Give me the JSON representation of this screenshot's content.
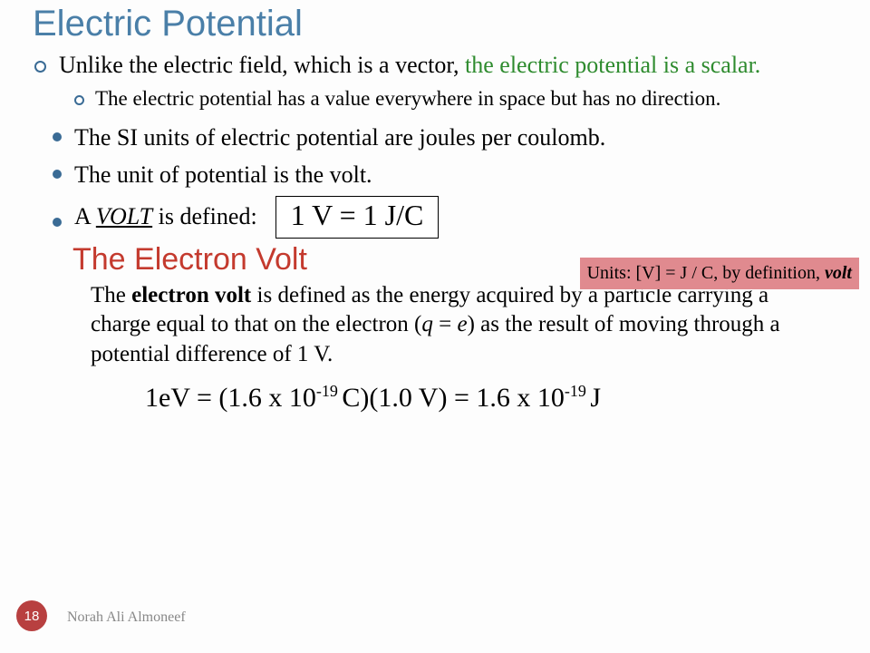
{
  "title": "Electric Potential",
  "bullet1": {
    "pre": "Unlike the electric field, which is a vector, ",
    "green": "the electric potential is a scalar.",
    "sub": "The electric potential has a value everywhere in space but has no direction."
  },
  "bullet2": "The SI units of electric potential are joules per coulomb.",
  "bullet3": "The unit of potential is the volt.",
  "bullet4_pre": "A   ",
  "bullet4_u": "VOLT",
  "bullet4_post": " is defined:",
  "eq1": "1 V = 1 J/C",
  "callout_pre": "Units: [V] = J / C,  by definition, ",
  "callout_volt": "volt",
  "heading2": "The Electron Volt",
  "para_pre": "The ",
  "para_bold": "electron volt",
  "para_mid": " is defined as the energy acquired by a particle carrying a charge equal to that on the electron (",
  "para_q": "q",
  "para_eq": " = ",
  "para_e": "e",
  "para_post": ") as the result of moving through a potential difference of 1 V.",
  "eq2_a": "1eV = (1.6 x 10",
  "eq2_sup1": "-19 ",
  "eq2_b": "C)(1.0 V) = 1.6 x 10",
  "eq2_sup2": "-19 ",
  "eq2_c": "J",
  "page": "18",
  "author": "Norah Ali Almoneef",
  "colors": {
    "title": "#4a7fa8",
    "heading2": "#c43a2e",
    "callout_bg": "#e08a8f",
    "bullet": "#3a6b95",
    "pagenum_bg": "#b84040",
    "green": "#2e8b2e"
  }
}
